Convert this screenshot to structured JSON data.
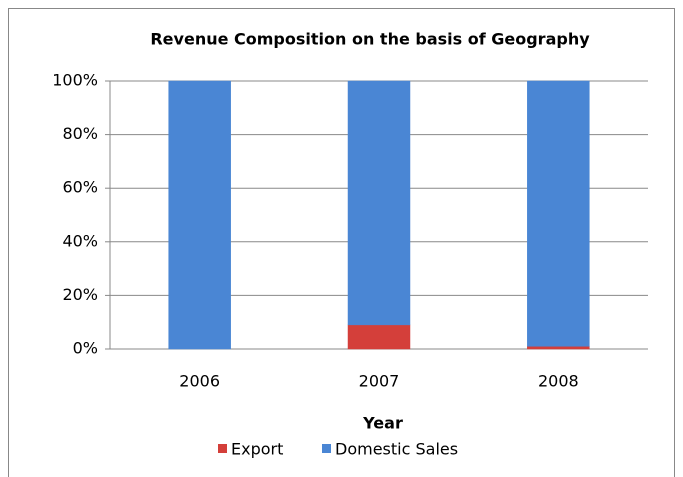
{
  "chart_data": {
    "type": "stacked_bar_percent",
    "title": "Revenue Composition on the basis of Geography",
    "x_label": "Year",
    "categories": [
      "2006",
      "2007",
      "2008"
    ],
    "series": [
      {
        "name": "Export",
        "color": "#d43f3a",
        "values": [
          0,
          9,
          1
        ]
      },
      {
        "name": "Domestic Sales",
        "color": "#4a86d4",
        "values": [
          100,
          91,
          99
        ]
      }
    ],
    "ylim": [
      0,
      100
    ],
    "yticks": [
      {
        "value": 0,
        "label": "0%"
      },
      {
        "value": 20,
        "label": "20%"
      },
      {
        "value": 40,
        "label": "40%"
      },
      {
        "value": 60,
        "label": "60%"
      },
      {
        "value": 80,
        "label": "80%"
      },
      {
        "value": 100,
        "label": "100%"
      }
    ],
    "grid": true,
    "legend": "bottom"
  }
}
